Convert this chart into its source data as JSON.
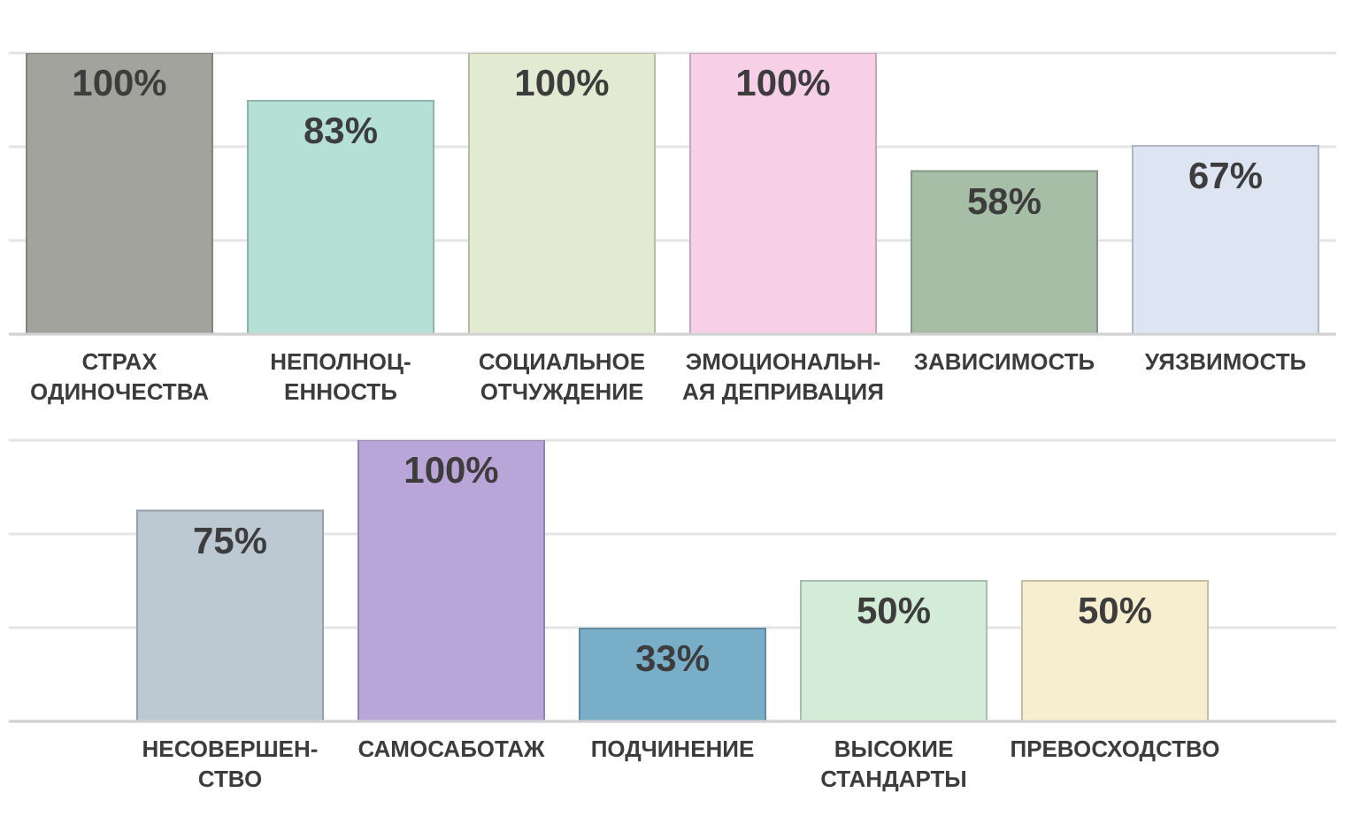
{
  "chart_data": [
    {
      "type": "bar",
      "categories": [
        "СТРАХ ОДИНОЧЕСТВА",
        "НЕПОЛНОЦ-ЕННОСТЬ",
        "СОЦИАЛЬНОЕ ОТЧУЖДЕНИЕ",
        "ЭМОЦИОНАЛЬН-АЯ ДЕПРИВАЦИЯ",
        "ЗАВИСИМОСТЬ",
        "УЯЗВИМОСТЬ"
      ],
      "values": [
        100,
        83,
        100,
        100,
        58,
        67
      ],
      "colors": [
        "#a3a39d",
        "#b4e0d6",
        "#e2ebd2",
        "#f7d0e8",
        "#a6bda6",
        "#dde5f2"
      ],
      "value_labels": [
        "100%",
        "83%",
        "100%",
        "100%",
        "58%",
        "67%"
      ],
      "ylim": [
        0,
        100
      ],
      "yticks": [
        {
          "value": 0,
          "label": null
        },
        {
          "value": 33.3,
          "label": null
        },
        {
          "value": 66.7,
          "label": null
        },
        {
          "value": 100,
          "label": null
        }
      ],
      "grid": "y",
      "tick_labels": "x"
    },
    {
      "type": "bar",
      "categories": [
        "НЕСОВЕРШЕН-СТВО",
        "САМОСАБОТАЖ",
        "ПОДЧИНЕНИЕ",
        "ВЫСОКИЕ СТАНДАРТЫ",
        "ПРЕВОСХОДСТВО"
      ],
      "values": [
        75,
        100,
        33,
        50,
        50
      ],
      "colors": [
        "#bcc8d2",
        "#b9a5d8",
        "#78aec8",
        "#d2ecd8",
        "#f6eece"
      ],
      "value_labels": [
        "75%",
        "100%",
        "33%",
        "50%",
        "50%"
      ],
      "ylim": [
        0,
        100
      ],
      "yticks": [
        {
          "value": 0,
          "label": null
        },
        {
          "value": 33.3,
          "label": null
        },
        {
          "value": 66.7,
          "label": null
        },
        {
          "value": 100,
          "label": null
        }
      ],
      "grid": "y",
      "tick_labels": "x"
    }
  ]
}
